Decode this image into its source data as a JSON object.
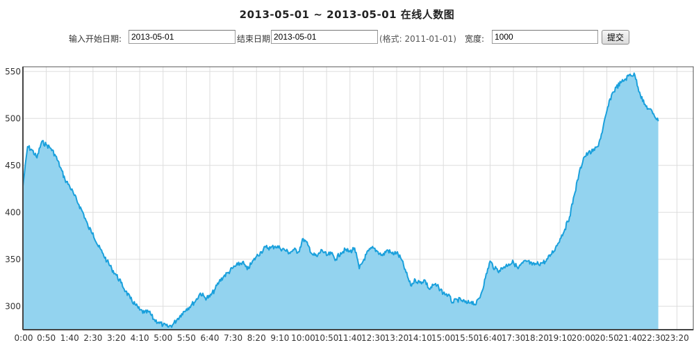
{
  "page": {
    "title": "2013-05-01 ~ 2013-05-01 在线人数图"
  },
  "form": {
    "start_label": "输入开始日期:",
    "start_value": "2013-05-01",
    "end_label": "结束日期",
    "end_value": "2013-05-01",
    "format_hint": "(格式: 2011-01-01)",
    "width_label": "宽度:",
    "width_value": "1000",
    "submit_label": "提交"
  },
  "chart_data": {
    "type": "area",
    "title": "",
    "xlabel": "",
    "ylabel": "",
    "grid": true,
    "colors": {
      "line": "#1aa0dc",
      "fill": "#93d3ef",
      "grid": "#dddddd",
      "axis": "#555555"
    },
    "xlim": [
      "0:00",
      "23:55"
    ],
    "ylim": [
      275,
      555
    ],
    "yticks": [
      300,
      350,
      400,
      450,
      500,
      550
    ],
    "xticks": [
      "0:00",
      "0:50",
      "1:40",
      "2:30",
      "3:20",
      "4:10",
      "5:00",
      "5:50",
      "6:40",
      "7:30",
      "8:20",
      "9:10",
      "10:00",
      "10:50",
      "11:40",
      "12:30",
      "13:20",
      "14:10",
      "15:00",
      "15:50",
      "16:40",
      "17:30",
      "18:20",
      "19:10",
      "20:00",
      "20:50",
      "21:40",
      "22:30",
      "23:20"
    ],
    "series": [
      {
        "points": [
          [
            "0:00",
            428
          ],
          [
            "0:10",
            470
          ],
          [
            "0:20",
            466
          ],
          [
            "0:30",
            458
          ],
          [
            "0:40",
            475
          ],
          [
            "0:50",
            472
          ],
          [
            "1:00",
            468
          ],
          [
            "1:10",
            460
          ],
          [
            "1:20",
            448
          ],
          [
            "1:30",
            435
          ],
          [
            "1:40",
            428
          ],
          [
            "1:50",
            418
          ],
          [
            "2:00",
            408
          ],
          [
            "2:10",
            398
          ],
          [
            "2:20",
            384
          ],
          [
            "2:30",
            378
          ],
          [
            "2:40",
            365
          ],
          [
            "2:50",
            357
          ],
          [
            "3:00",
            348
          ],
          [
            "3:10",
            340
          ],
          [
            "3:20",
            333
          ],
          [
            "3:30",
            325
          ],
          [
            "3:40",
            316
          ],
          [
            "3:50",
            308
          ],
          [
            "4:00",
            302
          ],
          [
            "4:10",
            296
          ],
          [
            "4:20",
            293
          ],
          [
            "4:30",
            294
          ],
          [
            "4:40",
            286
          ],
          [
            "4:50",
            283
          ],
          [
            "5:00",
            280
          ],
          [
            "5:10",
            278
          ],
          [
            "5:20",
            280
          ],
          [
            "5:30",
            286
          ],
          [
            "5:40",
            292
          ],
          [
            "5:50",
            297
          ],
          [
            "6:00",
            301
          ],
          [
            "6:10",
            306
          ],
          [
            "6:20",
            314
          ],
          [
            "6:30",
            309
          ],
          [
            "6:40",
            310
          ],
          [
            "6:50",
            317
          ],
          [
            "7:00",
            326
          ],
          [
            "7:10",
            332
          ],
          [
            "7:20",
            336
          ],
          [
            "7:30",
            341
          ],
          [
            "7:40",
            344
          ],
          [
            "7:50",
            347
          ],
          [
            "8:00",
            339
          ],
          [
            "8:10",
            346
          ],
          [
            "8:20",
            353
          ],
          [
            "8:30",
            358
          ],
          [
            "8:40",
            363
          ],
          [
            "8:50",
            362
          ],
          [
            "9:00",
            364
          ],
          [
            "9:10",
            362
          ],
          [
            "9:20",
            360
          ],
          [
            "9:30",
            357
          ],
          [
            "9:40",
            360
          ],
          [
            "9:50",
            358
          ],
          [
            "10:00",
            372
          ],
          [
            "10:10",
            365
          ],
          [
            "10:20",
            355
          ],
          [
            "10:30",
            353
          ],
          [
            "10:40",
            360
          ],
          [
            "10:50",
            354
          ],
          [
            "11:00",
            356
          ],
          [
            "11:10",
            350
          ],
          [
            "11:20",
            357
          ],
          [
            "11:30",
            360
          ],
          [
            "11:40",
            358
          ],
          [
            "11:50",
            362
          ],
          [
            "12:00",
            340
          ],
          [
            "12:10",
            350
          ],
          [
            "12:20",
            359
          ],
          [
            "12:30",
            362
          ],
          [
            "12:40",
            358
          ],
          [
            "12:50",
            354
          ],
          [
            "13:00",
            360
          ],
          [
            "13:10",
            356
          ],
          [
            "13:20",
            357
          ],
          [
            "13:30",
            350
          ],
          [
            "13:40",
            336
          ],
          [
            "13:50",
            322
          ],
          [
            "14:00",
            328
          ],
          [
            "14:10",
            325
          ],
          [
            "14:20",
            328
          ],
          [
            "14:30",
            318
          ],
          [
            "14:40",
            323
          ],
          [
            "14:50",
            320
          ],
          [
            "15:00",
            314
          ],
          [
            "15:10",
            312
          ],
          [
            "15:20",
            304
          ],
          [
            "15:30",
            307
          ],
          [
            "15:40",
            306
          ],
          [
            "15:50",
            303
          ],
          [
            "16:00",
            305
          ],
          [
            "16:10",
            302
          ],
          [
            "16:20",
            312
          ],
          [
            "16:30",
            330
          ],
          [
            "16:40",
            348
          ],
          [
            "16:50",
            340
          ],
          [
            "17:00",
            338
          ],
          [
            "17:10",
            342
          ],
          [
            "17:20",
            345
          ],
          [
            "17:30",
            347
          ],
          [
            "17:40",
            340
          ],
          [
            "17:50",
            346
          ],
          [
            "18:00",
            348
          ],
          [
            "18:10",
            344
          ],
          [
            "18:20",
            345
          ],
          [
            "18:30",
            346
          ],
          [
            "18:40",
            348
          ],
          [
            "18:50",
            355
          ],
          [
            "19:00",
            362
          ],
          [
            "19:10",
            372
          ],
          [
            "19:20",
            382
          ],
          [
            "19:30",
            395
          ],
          [
            "19:40",
            418
          ],
          [
            "19:50",
            440
          ],
          [
            "20:00",
            458
          ],
          [
            "20:10",
            463
          ],
          [
            "20:20",
            465
          ],
          [
            "20:30",
            470
          ],
          [
            "20:40",
            485
          ],
          [
            "20:50",
            508
          ],
          [
            "21:00",
            525
          ],
          [
            "21:10",
            533
          ],
          [
            "21:20",
            538
          ],
          [
            "21:30",
            542
          ],
          [
            "21:40",
            547
          ],
          [
            "21:50",
            546
          ],
          [
            "22:00",
            528
          ],
          [
            "22:10",
            515
          ],
          [
            "22:20",
            510
          ],
          [
            "22:30",
            505
          ],
          [
            "22:40",
            497
          ]
        ]
      }
    ]
  }
}
